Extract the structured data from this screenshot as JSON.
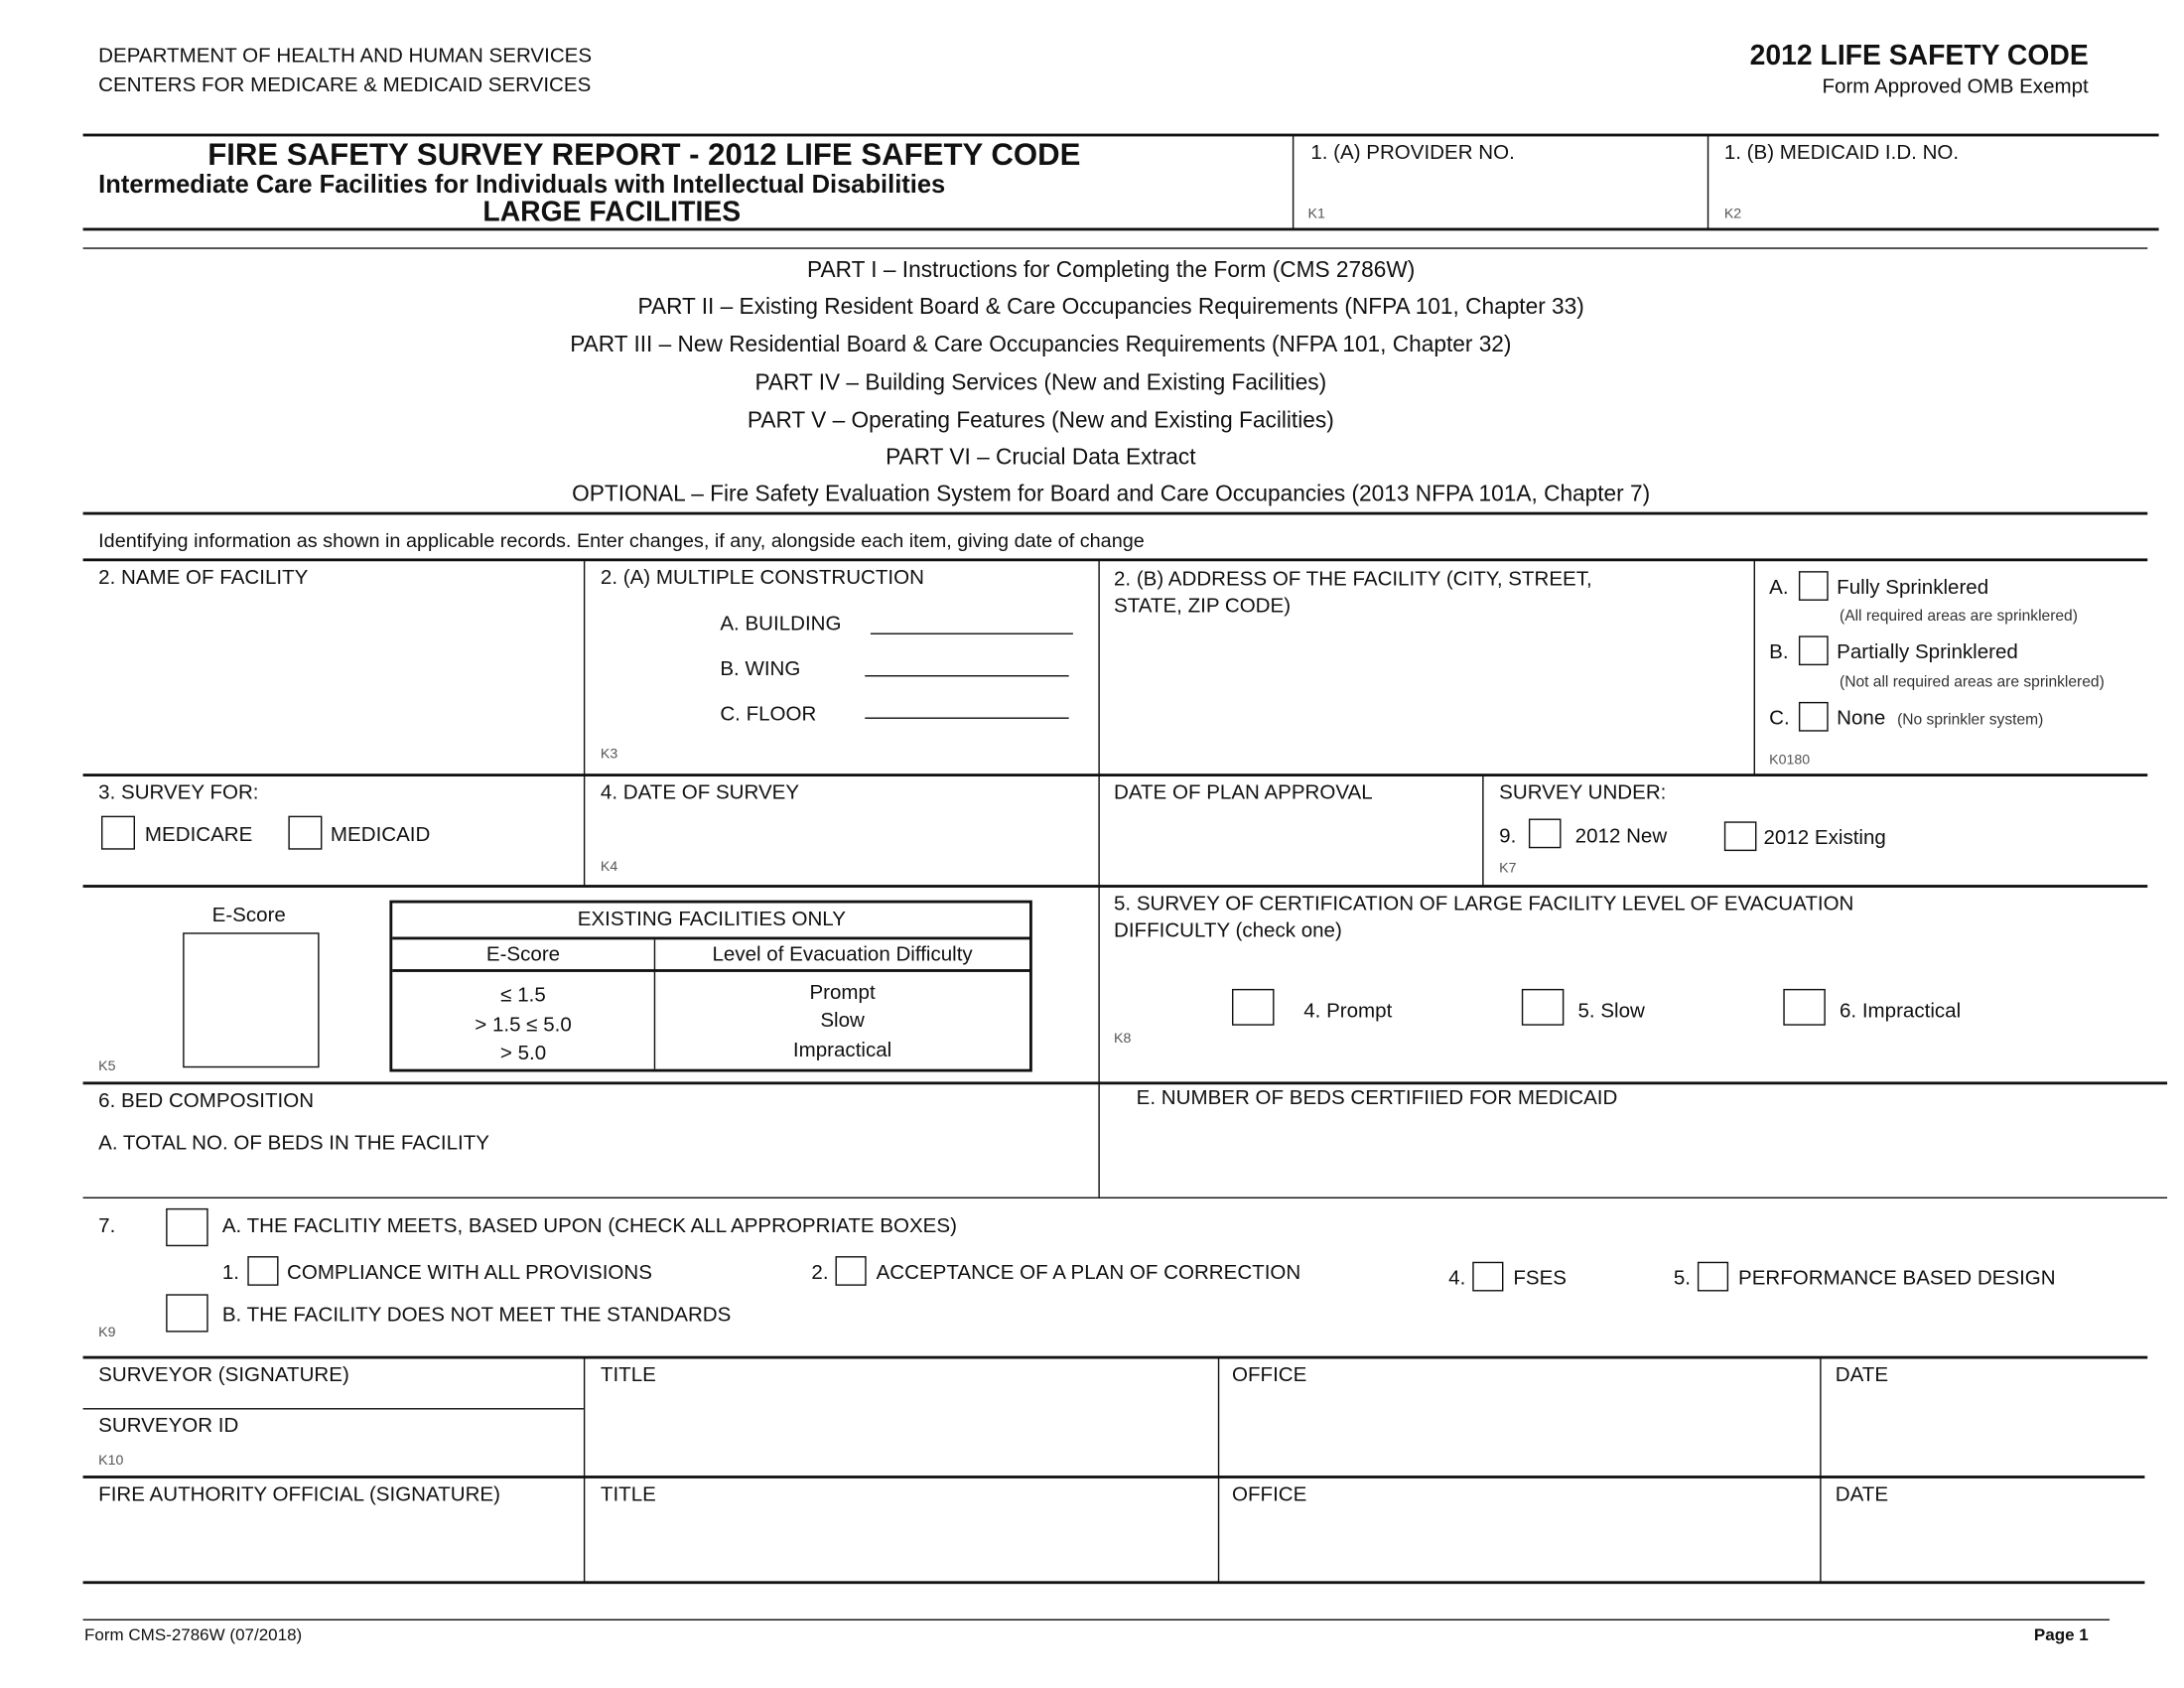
{
  "header": {
    "dept": "DEPARTMENT OF HEALTH AND HUMAN SERVICES",
    "centers": "CENTERS FOR MEDICARE & MEDICAID SERVICES",
    "code_title": "2012 LIFE SAFETY CODE",
    "omb": "Form Approved OMB Exempt"
  },
  "title_block": {
    "title": "FIRE SAFETY SURVEY REPORT - 2012 LIFE SAFETY  CODE",
    "subtitle": "Intermediate Care Facilities for Individuals with Intellectual Disabilities",
    "size": "LARGE FACILITIES",
    "provider_label": "1. (A) PROVIDER NO.",
    "provider_code": "K1",
    "medicaid_label": "1. (B) MEDICAID I.D. NO.",
    "medicaid_code": "K2"
  },
  "parts": [
    "PART I – Instructions for Completing the Form (CMS 2786W)",
    "PART II – Existing Resident Board & Care Occupancies Requirements (NFPA 101, Chapter 33)",
    "PART III – New Residential Board & Care Occupancies Requirements (NFPA 101, Chapter 32)",
    "PART IV – Building Services (New and Existing Facilities)",
    "PART V – Operating Features (New and Existing Facilities)",
    "PART VI – Crucial Data Extract",
    "OPTIONAL – Fire Safety Evaluation System for Board and Care Occupancies (2013 NFPA 101A, Chapter 7)"
  ],
  "identifying_note": "Identifying information as shown in applicable records. Enter changes, if any, alongside each item, giving date of change",
  "row2": {
    "name_label": "2. NAME OF FACILITY",
    "multi_label": "2. (A) MULTIPLE CONSTRUCTION",
    "building": "A. BUILDING",
    "wing": "B. WING",
    "floor": "C. FLOOR",
    "multi_code": "K3",
    "address_label_1": "2. (B) ADDRESS OF THE FACILITY (CITY, STREET,",
    "address_label_2": "STATE, ZIP CODE)",
    "sprinkler": {
      "a": "A.",
      "a_label": "Fully Sprinklered",
      "a_note": "(All required areas are sprinklered)",
      "b": "B.",
      "b_label": "Partially Sprinklered",
      "b_note": "(Not all required areas are sprinklered)",
      "c": "C.",
      "c_label": "None",
      "c_note": "(No sprinkler system)",
      "code": "K0180"
    }
  },
  "row3": {
    "survey_for": "3. SURVEY FOR:",
    "medicare": "MEDICARE",
    "medicaid": "MEDICAID",
    "date_label": "4. DATE OF SURVEY",
    "date_code": "K4",
    "plan_label": "DATE OF PLAN APPROVAL",
    "under_label": "SURVEY UNDER:",
    "num": "9.",
    "new": "2012 New",
    "existing": "2012 Existing",
    "under_code": "K7"
  },
  "escore": {
    "label": "E-Score",
    "code": "K5",
    "table_title": "EXISTING FACILITIES ONLY",
    "col1": "E-Score",
    "col2": "Level of Evacuation Difficulty",
    "scores": [
      "≤ 1.5",
      "> 1.5 ≤ 5.0",
      "> 5.0"
    ],
    "levels": [
      "Prompt",
      "Slow",
      "Impractical"
    ]
  },
  "sec5": {
    "label_1": "5. SURVEY OF CERTIFICATION OF LARGE FACILITY LEVEL OF EVACUATION",
    "label_2": "DIFFICULTY (check one)",
    "prompt": "4. Prompt",
    "slow": "5. Slow",
    "impractical": "6. Impractical",
    "code": "K8"
  },
  "sec6": {
    "label": "6. BED COMPOSITION",
    "total": "A. TOTAL NO. OF BEDS IN THE FACILITY",
    "medicaid_beds": "E. NUMBER OF BEDS CERTIFIIED FOR MEDICAID"
  },
  "sec7": {
    "num": "7.",
    "a": "A. THE FACLITIY MEETS, BASED UPON (CHECK ALL APPROPRIATE BOXES)",
    "o1n": "1.",
    "o1": "COMPLIANCE WITH ALL PROVISIONS",
    "o2n": "2.",
    "o2": "ACCEPTANCE OF A PLAN OF CORRECTION",
    "o4n": "4.",
    "o4": "FSES",
    "o5n": "5.",
    "o5": "PERFORMANCE BASED DESIGN",
    "b": "B. THE FACILITY DOES NOT MEET THE STANDARDS",
    "code": "K9"
  },
  "signatures": {
    "surveyor": "SURVEYOR (SIGNATURE)",
    "surveyor_id": "SURVEYOR ID",
    "id_code": "K10",
    "title": "TITLE",
    "office": "OFFICE",
    "date": "DATE",
    "fire": "FIRE AUTHORITY OFFICIAL (SIGNATURE)"
  },
  "footer": {
    "form": "Form CMS-2786W (07/2018)",
    "page": "Page 1"
  }
}
